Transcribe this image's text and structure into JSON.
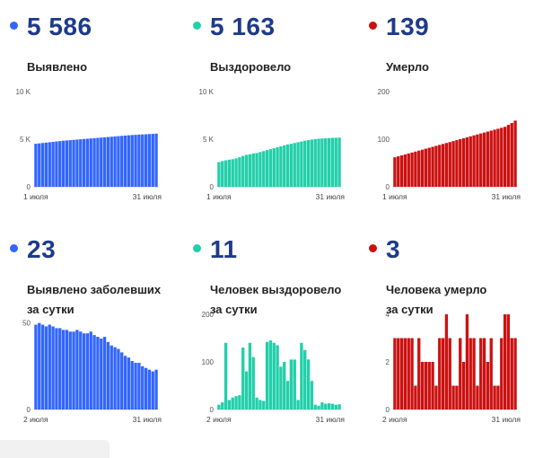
{
  "cards": [
    {
      "value": "5 586",
      "caption": "Выявлено",
      "color": "#3366ff",
      "chart_data": {
        "type": "bar",
        "title": "",
        "y_ticks": [
          "10 K",
          "5 K",
          "0"
        ],
        "y_tick_values": [
          10000,
          5000,
          0
        ],
        "ylim": [
          0,
          10000
        ],
        "x_start_label": "1 июля",
        "x_end_label": "31 июля",
        "values": [
          4520,
          4560,
          4600,
          4640,
          4680,
          4720,
          4760,
          4800,
          4840,
          4870,
          4900,
          4930,
          4960,
          4990,
          5020,
          5050,
          5080,
          5110,
          5140,
          5170,
          5200,
          5230,
          5260,
          5290,
          5320,
          5350,
          5380,
          5410,
          5440,
          5460,
          5480,
          5500,
          5520,
          5540,
          5560,
          5586
        ]
      }
    },
    {
      "value": "5 163",
      "caption": "Выздоровело",
      "color": "#21cfa9",
      "chart_data": {
        "type": "bar",
        "title": "",
        "y_ticks": [
          "10 K",
          "5 K",
          "0"
        ],
        "y_tick_values": [
          10000,
          5000,
          0
        ],
        "ylim": [
          0,
          10000
        ],
        "x_start_label": "1 июля",
        "x_end_label": "31 июля",
        "values": [
          2600,
          2700,
          2780,
          2850,
          2900,
          2980,
          3100,
          3250,
          3350,
          3420,
          3500,
          3550,
          3650,
          3750,
          3850,
          3950,
          4050,
          4150,
          4250,
          4350,
          4450,
          4520,
          4600,
          4680,
          4760,
          4840,
          4900,
          4960,
          5000,
          5050,
          5080,
          5100,
          5120,
          5140,
          5150,
          5163
        ]
      }
    },
    {
      "value": "139",
      "caption": "Умерло",
      "color": "#cc1111",
      "chart_data": {
        "type": "bar",
        "title": "",
        "y_ticks": [
          "200",
          "100",
          "0"
        ],
        "y_tick_values": [
          200,
          100,
          0
        ],
        "ylim": [
          0,
          200
        ],
        "x_start_label": "1 июля",
        "x_end_label": "31 июля",
        "values": [
          62,
          64,
          66,
          68,
          70,
          72,
          74,
          76,
          78,
          80,
          82,
          84,
          86,
          88,
          90,
          92,
          94,
          96,
          98,
          100,
          102,
          104,
          106,
          108,
          110,
          112,
          114,
          116,
          118,
          120,
          122,
          124,
          126,
          130,
          134,
          139
        ]
      }
    },
    {
      "value": "23",
      "caption": "Выявлено заболевших\nза сутки",
      "color": "#3366ff",
      "chart_data": {
        "type": "bar",
        "title": "",
        "y_ticks": [
          "50",
          "0"
        ],
        "y_tick_values": [
          50,
          0
        ],
        "ylim": [
          0,
          55
        ],
        "x_start_label": "2 июля",
        "x_end_label": "31 июля",
        "values": [
          49,
          50,
          49,
          48,
          49,
          48,
          47,
          47,
          46,
          46,
          45,
          45,
          46,
          45,
          44,
          44,
          45,
          43,
          42,
          41,
          42,
          39,
          37,
          36,
          35,
          33,
          31,
          30,
          28,
          27,
          27,
          25,
          24,
          23,
          22,
          23
        ]
      }
    },
    {
      "value": "11",
      "caption": "Человек выздоровело\nза сутки",
      "color": "#21cfa9",
      "chart_data": {
        "type": "bar",
        "title": "",
        "y_ticks": [
          "200",
          "100",
          "0"
        ],
        "y_tick_values": [
          200,
          100,
          0
        ],
        "ylim": [
          0,
          200
        ],
        "x_start_label": "2 июля",
        "x_end_label": "31 июля",
        "values": [
          10,
          15,
          140,
          20,
          25,
          28,
          30,
          130,
          80,
          140,
          110,
          25,
          20,
          18,
          142,
          145,
          140,
          135,
          90,
          100,
          60,
          105,
          105,
          20,
          140,
          125,
          105,
          60,
          10,
          8,
          15,
          12,
          13,
          12,
          10,
          11
        ]
      }
    },
    {
      "value": "3",
      "caption": "Человека умерло\nза сутки",
      "color": "#cc1111",
      "chart_data": {
        "type": "bar",
        "title": "",
        "y_ticks": [
          "4",
          "2",
          "0"
        ],
        "y_tick_values": [
          4,
          2,
          0
        ],
        "ylim": [
          0,
          4
        ],
        "x_start_label": "2 июля",
        "x_end_label": "31 июля",
        "values": [
          3,
          3,
          3,
          3,
          3,
          3,
          1,
          3,
          2,
          2,
          2,
          2,
          1,
          3,
          3,
          4,
          3,
          1,
          1,
          3,
          2,
          4,
          3,
          3,
          1,
          3,
          3,
          2,
          3,
          1,
          1,
          3,
          4,
          4,
          3,
          3
        ]
      }
    }
  ]
}
